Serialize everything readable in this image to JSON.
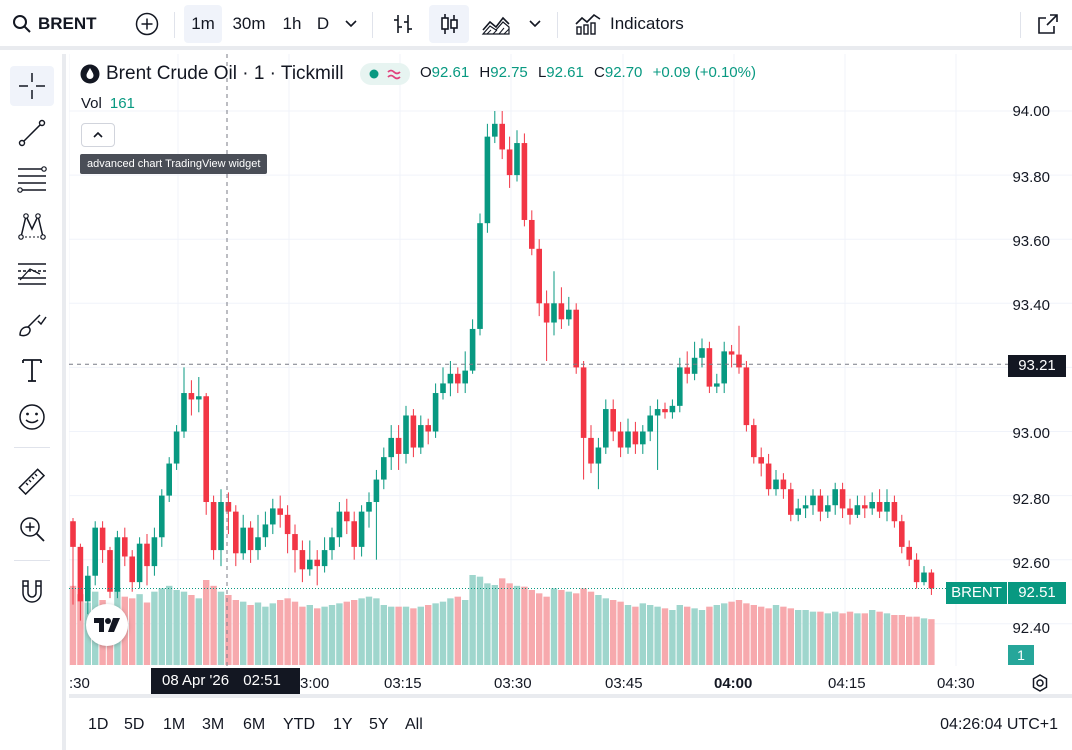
{
  "toolbar": {
    "symbol": "BRENT",
    "intervals": [
      "1m",
      "30m",
      "1h",
      "D"
    ],
    "active_interval": "1m",
    "indicators_label": "Indicators"
  },
  "legend": {
    "title": "Brent Crude Oil · 1 · Tickmill",
    "open_label": "O",
    "open": "92.61",
    "high_label": "H",
    "high": "92.75",
    "low_label": "L",
    "low": "92.61",
    "close_label": "C",
    "close": "92.70",
    "change": "+0.09 (+0.10%)",
    "vol_label": "Vol",
    "vol_value": "161",
    "tooltip": "advanced chart TradingView widget"
  },
  "price_axis": {
    "labels": [
      "94.00",
      "93.80",
      "93.60",
      "93.40",
      "93.00",
      "92.80",
      "92.60",
      "92.40"
    ],
    "crosshair_price": "93.21",
    "symbol_badge": "BRENT",
    "last_price": "92.51",
    "volume_badge": "1"
  },
  "time_axis": {
    "labels": [
      ":30",
      "3:00",
      "03:15",
      "03:30",
      "03:45",
      "04:00",
      "04:15",
      "04:30"
    ],
    "crosshair_date": "08 Apr '26",
    "crosshair_time": "02:51"
  },
  "ranges": [
    "1D",
    "5D",
    "1M",
    "3M",
    "6M",
    "YTD",
    "1Y",
    "5Y",
    "All"
  ],
  "clock": "04:26:04 UTC+1",
  "colors": {
    "up": "#089981",
    "down": "#f23645",
    "vol_up": "#9fd6cd",
    "vol_down": "#f7a9ad",
    "accent": "#089981"
  },
  "chart_data": {
    "type": "candlestick",
    "y_range": [
      92.25,
      94.05
    ],
    "candles": [
      [
        92.72,
        92.64,
        92.73,
        92.46
      ],
      [
        92.64,
        92.47,
        92.65,
        92.41
      ],
      [
        92.47,
        92.55,
        92.58,
        92.43
      ],
      [
        92.55,
        92.7,
        92.72,
        92.52
      ],
      [
        92.7,
        92.63,
        92.72,
        92.59
      ],
      [
        92.63,
        92.5,
        92.64,
        92.48
      ],
      [
        92.5,
        92.67,
        92.69,
        92.48
      ],
      [
        92.67,
        92.61,
        92.7,
        92.58
      ],
      [
        92.61,
        92.53,
        92.63,
        92.5
      ],
      [
        92.53,
        92.65,
        92.67,
        92.51
      ],
      [
        92.65,
        92.58,
        92.68,
        92.52
      ],
      [
        92.58,
        92.67,
        92.7,
        92.55
      ],
      [
        92.67,
        92.8,
        92.82,
        92.64
      ],
      [
        92.8,
        92.9,
        92.92,
        92.78
      ],
      [
        92.9,
        93.0,
        93.02,
        92.88
      ],
      [
        93.0,
        93.12,
        93.2,
        92.98
      ],
      [
        93.12,
        93.1,
        93.16,
        93.05
      ],
      [
        93.1,
        93.11,
        93.17,
        93.06
      ],
      [
        93.11,
        92.78,
        93.12,
        92.74
      ],
      [
        92.78,
        92.63,
        92.8,
        92.6
      ],
      [
        92.63,
        92.78,
        92.82,
        92.58
      ],
      [
        92.78,
        92.75,
        92.81,
        92.68
      ],
      [
        92.75,
        92.62,
        92.77,
        92.58
      ],
      [
        92.62,
        92.7,
        92.74,
        92.6
      ],
      [
        92.7,
        92.63,
        92.72,
        92.59
      ],
      [
        92.63,
        92.67,
        92.74,
        92.6
      ],
      [
        92.67,
        92.71,
        92.75,
        92.64
      ],
      [
        92.71,
        92.76,
        92.79,
        92.68
      ],
      [
        92.76,
        92.74,
        92.8,
        92.7
      ],
      [
        92.74,
        92.68,
        92.77,
        92.62
      ],
      [
        92.68,
        92.63,
        92.71,
        92.56
      ],
      [
        92.63,
        92.57,
        92.66,
        92.53
      ],
      [
        92.57,
        92.6,
        92.66,
        92.55
      ],
      [
        92.6,
        92.58,
        92.63,
        92.52
      ],
      [
        92.58,
        92.63,
        92.67,
        92.56
      ],
      [
        92.63,
        92.67,
        92.7,
        92.6
      ],
      [
        92.67,
        92.75,
        92.78,
        92.64
      ],
      [
        92.75,
        92.72,
        92.79,
        92.68
      ],
      [
        92.72,
        92.64,
        92.75,
        92.6
      ],
      [
        92.64,
        92.75,
        92.77,
        92.61
      ],
      [
        92.75,
        92.78,
        92.81,
        92.7
      ],
      [
        92.78,
        92.85,
        92.88,
        92.6
      ],
      [
        92.85,
        92.92,
        92.95,
        92.82
      ],
      [
        92.92,
        92.98,
        93.02,
        92.88
      ],
      [
        92.98,
        92.93,
        93.02,
        92.88
      ],
      [
        92.93,
        93.05,
        93.08,
        92.9
      ],
      [
        93.05,
        92.95,
        93.07,
        92.92
      ],
      [
        92.95,
        93.02,
        93.05,
        92.93
      ],
      [
        93.02,
        93.0,
        93.04,
        92.96
      ],
      [
        93.0,
        93.12,
        93.15,
        92.98
      ],
      [
        93.12,
        93.15,
        93.2,
        93.1
      ],
      [
        93.15,
        93.18,
        93.22,
        93.11
      ],
      [
        93.18,
        93.15,
        93.2,
        93.12
      ],
      [
        93.15,
        93.19,
        93.25,
        93.12
      ],
      [
        93.19,
        93.32,
        93.35,
        93.18
      ],
      [
        93.32,
        93.65,
        93.68,
        93.3
      ],
      [
        93.65,
        93.92,
        93.96,
        93.62
      ],
      [
        93.92,
        93.96,
        94.0,
        93.9
      ],
      [
        93.96,
        93.88,
        94.0,
        93.85
      ],
      [
        93.88,
        93.8,
        93.92,
        93.76
      ],
      [
        93.8,
        93.9,
        93.94,
        93.78
      ],
      [
        93.9,
        93.66,
        93.93,
        93.64
      ],
      [
        93.66,
        93.57,
        93.69,
        93.55
      ],
      [
        93.57,
        93.4,
        93.6,
        93.36
      ],
      [
        93.4,
        93.34,
        93.44,
        93.22
      ],
      [
        93.34,
        93.4,
        93.5,
        93.3
      ],
      [
        93.4,
        93.35,
        93.45,
        93.32
      ],
      [
        93.35,
        93.38,
        93.42,
        93.33
      ],
      [
        93.38,
        93.2,
        93.4,
        93.18
      ],
      [
        93.2,
        92.98,
        93.22,
        92.85
      ],
      [
        92.98,
        92.9,
        93.02,
        92.87
      ],
      [
        92.9,
        92.95,
        92.98,
        92.82
      ],
      [
        92.95,
        93.07,
        93.1,
        92.93
      ],
      [
        93.07,
        93.0,
        93.1,
        92.97
      ],
      [
        93.0,
        92.95,
        93.03,
        92.92
      ],
      [
        92.95,
        93.0,
        93.04,
        92.93
      ],
      [
        93.0,
        92.96,
        93.03,
        92.93
      ],
      [
        92.96,
        93.0,
        93.02,
        92.93
      ],
      [
        93.0,
        93.05,
        93.08,
        92.97
      ],
      [
        93.05,
        93.07,
        93.1,
        92.88
      ],
      [
        93.07,
        93.06,
        93.09,
        93.04
      ],
      [
        93.06,
        93.08,
        93.1,
        93.04
      ],
      [
        93.08,
        93.2,
        93.23,
        93.06
      ],
      [
        93.2,
        93.18,
        93.25,
        93.15
      ],
      [
        93.18,
        93.23,
        93.28,
        93.16
      ],
      [
        93.23,
        93.26,
        93.29,
        93.2
      ],
      [
        93.26,
        93.14,
        93.28,
        93.12
      ],
      [
        93.14,
        93.15,
        93.18,
        93.12
      ],
      [
        93.15,
        93.25,
        93.28,
        93.12
      ],
      [
        93.25,
        93.24,
        93.27,
        93.2
      ],
      [
        93.24,
        93.2,
        93.33,
        93.18
      ],
      [
        93.2,
        93.02,
        93.22,
        93.0
      ],
      [
        93.02,
        92.92,
        93.04,
        92.9
      ],
      [
        92.92,
        92.9,
        92.95,
        92.86
      ],
      [
        92.9,
        92.82,
        92.93,
        92.8
      ],
      [
        92.82,
        92.85,
        92.88,
        92.8
      ],
      [
        92.85,
        92.82,
        92.87,
        92.79
      ],
      [
        92.82,
        92.74,
        92.84,
        92.72
      ],
      [
        92.74,
        92.76,
        92.79,
        92.72
      ],
      [
        92.76,
        92.77,
        92.8,
        92.73
      ],
      [
        92.77,
        92.8,
        92.82,
        92.74
      ],
      [
        92.8,
        92.75,
        92.82,
        92.72
      ],
      [
        92.75,
        92.77,
        92.8,
        92.73
      ],
      [
        92.77,
        92.82,
        92.84,
        92.74
      ],
      [
        92.82,
        92.76,
        92.84,
        92.73
      ],
      [
        92.76,
        92.74,
        92.79,
        92.71
      ],
      [
        92.74,
        92.77,
        92.8,
        92.73
      ],
      [
        92.77,
        92.76,
        92.8,
        92.73
      ],
      [
        92.76,
        92.78,
        92.81,
        92.74
      ],
      [
        92.78,
        92.75,
        92.82,
        92.73
      ],
      [
        92.75,
        92.78,
        92.82,
        92.72
      ],
      [
        92.78,
        92.72,
        92.8,
        92.7
      ],
      [
        92.72,
        92.64,
        92.74,
        92.62
      ],
      [
        92.64,
        92.6,
        92.66,
        92.58
      ],
      [
        92.6,
        92.53,
        92.62,
        92.51
      ],
      [
        92.53,
        92.56,
        92.58,
        92.52
      ],
      [
        92.56,
        92.51,
        92.57,
        92.49
      ]
    ],
    "volume": [
      95,
      85,
      75,
      88,
      78,
      72,
      90,
      82,
      80,
      85,
      75,
      88,
      92,
      95,
      90,
      88,
      84,
      80,
      102,
      95,
      88,
      84,
      78,
      76,
      72,
      75,
      70,
      74,
      78,
      80,
      76,
      70,
      72,
      68,
      70,
      72,
      74,
      76,
      78,
      80,
      82,
      80,
      72,
      70,
      70,
      70,
      68,
      70,
      72,
      74,
      76,
      80,
      82,
      78,
      108,
      106,
      98,
      96,
      104,
      98,
      95,
      94,
      90,
      86,
      82,
      92,
      90,
      88,
      86,
      92,
      88,
      84,
      80,
      78,
      76,
      72,
      70,
      74,
      72,
      70,
      68,
      66,
      72,
      70,
      68,
      66,
      70,
      72,
      74,
      76,
      78,
      74,
      72,
      70,
      68,
      72,
      70,
      68,
      66,
      66,
      64,
      64,
      62,
      64,
      62,
      64,
      62,
      62,
      66,
      64,
      62,
      60,
      60,
      58,
      58,
      56,
      55
    ],
    "volume_max": 180,
    "last_price": 92.51,
    "crosshair_price": 93.21,
    "crosshair_time": "02:51"
  }
}
